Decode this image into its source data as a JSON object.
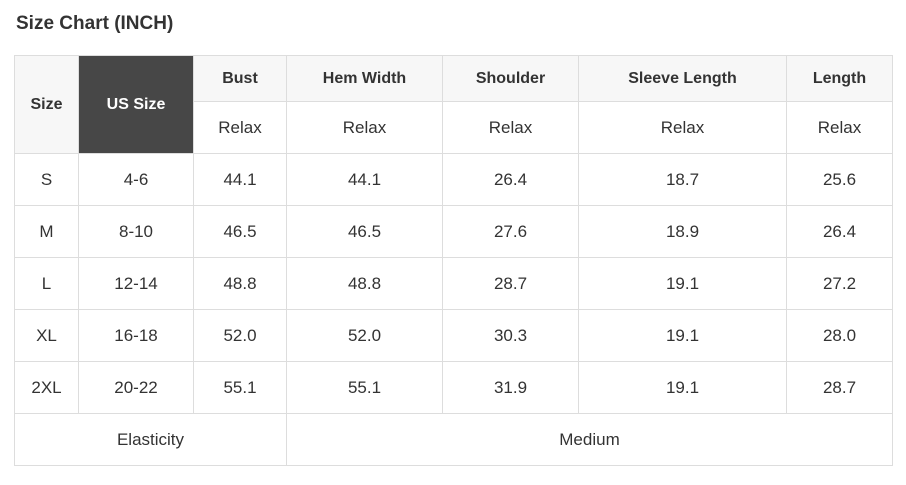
{
  "page": {
    "title": "Size Chart (INCH)"
  },
  "size_chart": {
    "headers": {
      "size": "Size",
      "us_size": "US Size",
      "columns": [
        "Bust",
        "Hem Width",
        "Shoulder",
        "Sleeve Length",
        "Length"
      ],
      "fit": [
        "Relax",
        "Relax",
        "Relax",
        "Relax",
        "Relax"
      ]
    },
    "rows": [
      {
        "size": "S",
        "us_size": "4-6",
        "bust": "44.1",
        "hem_width": "44.1",
        "shoulder": "26.4",
        "sleeve_length": "18.7",
        "length": "25.6"
      },
      {
        "size": "M",
        "us_size": "8-10",
        "bust": "46.5",
        "hem_width": "46.5",
        "shoulder": "27.6",
        "sleeve_length": "18.9",
        "length": "26.4"
      },
      {
        "size": "L",
        "us_size": "12-14",
        "bust": "48.8",
        "hem_width": "48.8",
        "shoulder": "28.7",
        "sleeve_length": "19.1",
        "length": "27.2"
      },
      {
        "size": "XL",
        "us_size": "16-18",
        "bust": "52.0",
        "hem_width": "52.0",
        "shoulder": "30.3",
        "sleeve_length": "19.1",
        "length": "28.0"
      },
      {
        "size": "2XL",
        "us_size": "20-22",
        "bust": "55.1",
        "hem_width": "55.1",
        "shoulder": "31.9",
        "sleeve_length": "19.1",
        "length": "28.7"
      }
    ],
    "footer": {
      "label": "Elasticity",
      "value": "Medium"
    },
    "colors": {
      "dark_header_bg": "#474747",
      "dark_header_text": "#ffffff",
      "light_header_bg": "#f7f7f7",
      "border": "#dddddd",
      "text": "#333333"
    }
  }
}
